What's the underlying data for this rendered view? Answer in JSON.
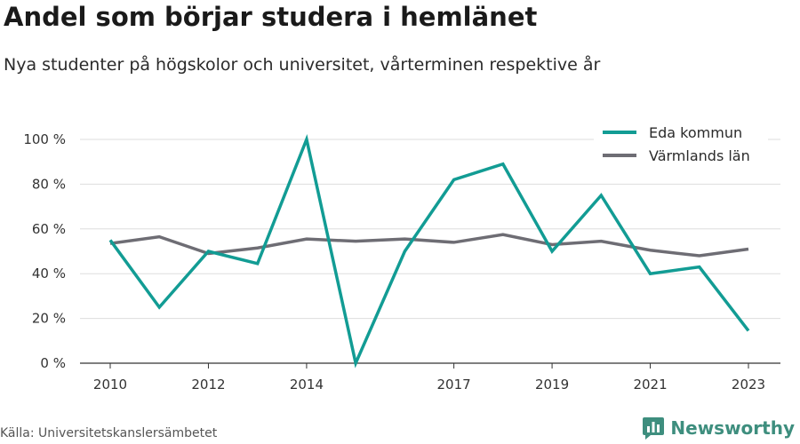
{
  "title": "Andel som börjar studera i hemlänet",
  "subtitle": "Nya studenter på högskolor och universitet, vårterminen respektive år",
  "source": "Källa: Universitetskanslersämbetet",
  "brand": {
    "name": "Newsworthy",
    "icon": "bar-chart-logo-icon",
    "color": "#3e8e7e"
  },
  "chart_data": {
    "type": "line",
    "title": "Andel som börjar studera i hemlänet",
    "subtitle": "Nya studenter på högskolor och universitet, vårterminen respektive år",
    "x": [
      2010,
      2011,
      2012,
      2013,
      2014,
      2015,
      2016,
      2017,
      2018,
      2019,
      2020,
      2021,
      2022,
      2023
    ],
    "x_ticks": [
      2010,
      2012,
      2014,
      2017,
      2019,
      2021,
      2023
    ],
    "xlim": [
      2010,
      2023
    ],
    "y_ticks": [
      0,
      20,
      40,
      60,
      80,
      100
    ],
    "y_tick_labels": [
      "0 %",
      "20 %",
      "40 %",
      "60 %",
      "80 %",
      "100 %"
    ],
    "ylim": [
      0,
      100
    ],
    "grid": "horizontal",
    "legend_position": "top-right",
    "series": [
      {
        "name": "Eda kommun",
        "color": "#129c94",
        "values": [
          55,
          25,
          50,
          44.5,
          100,
          0,
          50,
          82,
          89,
          50,
          75,
          40,
          43,
          14.5
        ]
      },
      {
        "name": "Värmlands län",
        "color": "#6e6d74",
        "values": [
          53.5,
          56.5,
          49,
          51.5,
          55.5,
          54.5,
          55.5,
          54,
          57.5,
          53,
          54.5,
          50.5,
          48,
          51
        ]
      }
    ]
  }
}
